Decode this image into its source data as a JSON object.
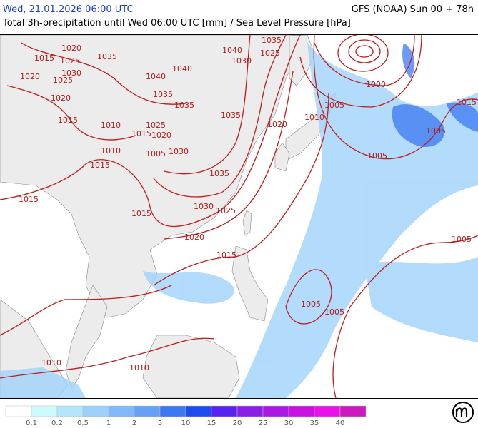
{
  "header": {
    "datetime": "Wed, 21.01.2026 06:00 UTC",
    "model": "GFS (NOAA) Sun 00 + 78h",
    "subtitle": "Total 3h-precipitation until Wed 06:00 UTC [mm] / Sea Level Pressure [hPa]"
  },
  "isobar_labels": [
    1015,
    1020,
    1035,
    1025,
    1020,
    1030,
    1025,
    1040,
    1025,
    1035,
    1030,
    1040,
    1040,
    1035,
    1035,
    1035,
    1020,
    1015,
    1010,
    1025,
    1015,
    1020,
    1010,
    1020,
    1010,
    1005,
    1030,
    1015,
    1035,
    1015,
    1030,
    1025,
    1015,
    1020,
    1015,
    1000,
    1005,
    1005,
    1015,
    1005,
    1005,
    1005,
    1005,
    1010,
    1010
  ],
  "legend": {
    "colors": [
      "#ffffff",
      "#cdfafd",
      "#b4e6fb",
      "#9dd0fb",
      "#80b8fa",
      "#68a0f6",
      "#3c78f2",
      "#1c4cf0",
      "#5a22f0",
      "#8a20e8",
      "#a818e2",
      "#c810e0",
      "#ea12ea",
      "#cc1ac0"
    ],
    "thresholds": [
      0.1,
      0.2,
      0.5,
      1,
      2,
      5,
      10,
      15,
      20,
      25,
      30,
      35,
      40
    ]
  }
}
